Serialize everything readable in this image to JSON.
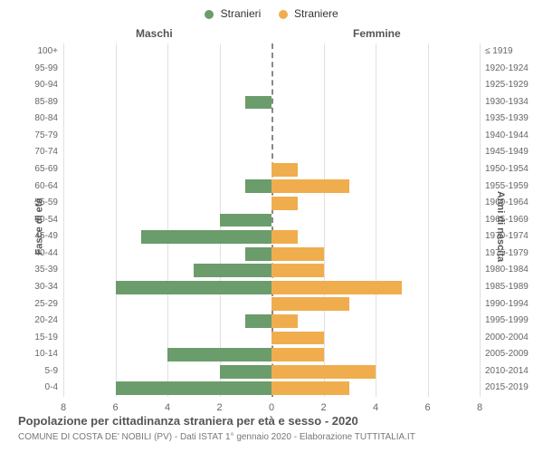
{
  "chart": {
    "type": "population-pyramid",
    "title": "Popolazione per cittadinanza straniera per età e sesso - 2020",
    "subtitle": "COMUNE DI COSTA DE' NOBILI (PV) - Dati ISTAT 1° gennaio 2020 - Elaborazione TUTTITALIA.IT",
    "legend": {
      "male_label": "Stranieri",
      "female_label": "Straniere"
    },
    "column_headers": {
      "left": "Maschi",
      "right": "Femmine"
    },
    "axis_titles": {
      "left": "Fasce di età",
      "right": "Anni di nascita"
    },
    "colors": {
      "male": "#6b9c6b",
      "female": "#f0ad4e",
      "grid": "#e0e0e0",
      "center_line": "#888888",
      "background": "#ffffff"
    },
    "xaxis": {
      "max": 8,
      "ticks": [
        8,
        6,
        4,
        2,
        0,
        2,
        4,
        6,
        8
      ]
    },
    "bar_height_ratio": 0.8,
    "rows": [
      {
        "age": "100+",
        "birth": "≤ 1919",
        "m": 0,
        "f": 0
      },
      {
        "age": "95-99",
        "birth": "1920-1924",
        "m": 0,
        "f": 0
      },
      {
        "age": "90-94",
        "birth": "1925-1929",
        "m": 0,
        "f": 0
      },
      {
        "age": "85-89",
        "birth": "1930-1934",
        "m": 1,
        "f": 0
      },
      {
        "age": "80-84",
        "birth": "1935-1939",
        "m": 0,
        "f": 0
      },
      {
        "age": "75-79",
        "birth": "1940-1944",
        "m": 0,
        "f": 0
      },
      {
        "age": "70-74",
        "birth": "1945-1949",
        "m": 0,
        "f": 0
      },
      {
        "age": "65-69",
        "birth": "1950-1954",
        "m": 0,
        "f": 1
      },
      {
        "age": "60-64",
        "birth": "1955-1959",
        "m": 1,
        "f": 3
      },
      {
        "age": "55-59",
        "birth": "1960-1964",
        "m": 0,
        "f": 1
      },
      {
        "age": "50-54",
        "birth": "1965-1969",
        "m": 2,
        "f": 0
      },
      {
        "age": "45-49",
        "birth": "1970-1974",
        "m": 5,
        "f": 1
      },
      {
        "age": "40-44",
        "birth": "1975-1979",
        "m": 1,
        "f": 2
      },
      {
        "age": "35-39",
        "birth": "1980-1984",
        "m": 3,
        "f": 2
      },
      {
        "age": "30-34",
        "birth": "1985-1989",
        "m": 6,
        "f": 5
      },
      {
        "age": "25-29",
        "birth": "1990-1994",
        "m": 0,
        "f": 3
      },
      {
        "age": "20-24",
        "birth": "1995-1999",
        "m": 1,
        "f": 1
      },
      {
        "age": "15-19",
        "birth": "2000-2004",
        "m": 0,
        "f": 2
      },
      {
        "age": "10-14",
        "birth": "2005-2009",
        "m": 4,
        "f": 2
      },
      {
        "age": "5-9",
        "birth": "2010-2014",
        "m": 2,
        "f": 4
      },
      {
        "age": "0-4",
        "birth": "2015-2019",
        "m": 6,
        "f": 3
      }
    ]
  }
}
